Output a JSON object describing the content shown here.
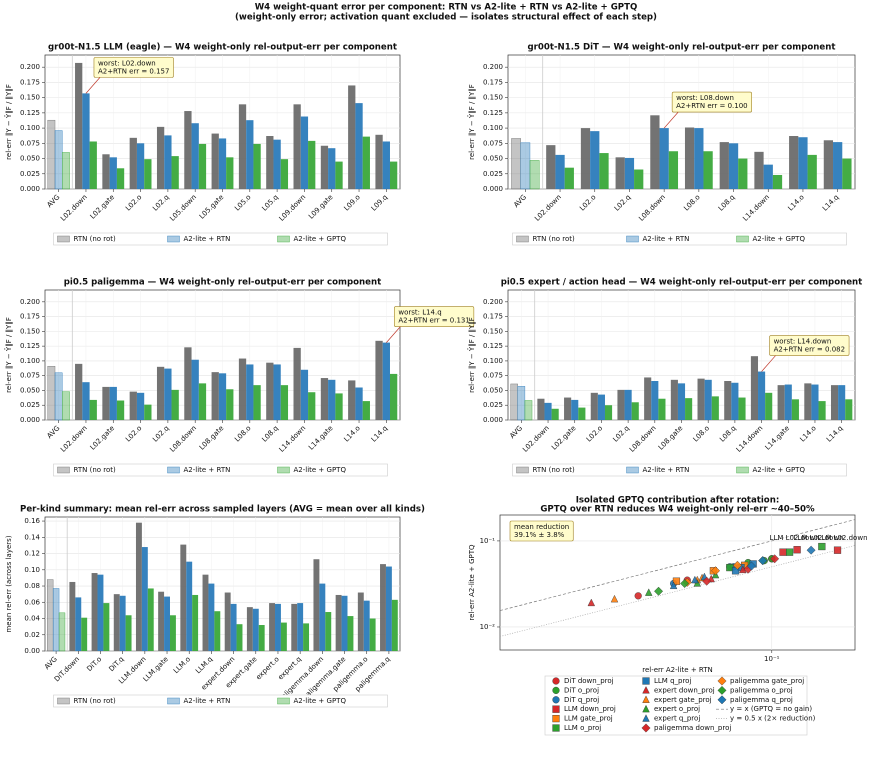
{
  "title": [
    "W4 weight-quant error per component: RTN  vs  A2-lite + RTN  vs  A2-lite + GPTQ",
    "(weight-only error; activation quant excluded — isolates structural effect of each step)"
  ],
  "chart_data": [
    {
      "type": "bar",
      "title": "gr00t-N1.5  LLM (eagle)  —  W4 weight-only rel-output-err per component",
      "ylabel": "rel-err ‖Y − Ŷ‖F / ‖Y‖F",
      "categories": [
        "AVG",
        "L02.down",
        "L02.gate",
        "L02.o",
        "L02.q",
        "L05.down",
        "L05.gate",
        "L05.o",
        "L05.q",
        "L09.down",
        "L09.gate",
        "L09.o",
        "L09.q"
      ],
      "series": [
        {
          "name": "RTN (no rot)",
          "color": "#6b6b6b",
          "values": [
            0.113,
            0.207,
            0.057,
            0.084,
            0.102,
            0.128,
            0.091,
            0.139,
            0.087,
            0.139,
            0.071,
            0.17,
            0.089
          ]
        },
        {
          "name": "A2-lite + RTN",
          "color": "#2b7bba",
          "values": [
            0.096,
            0.157,
            0.052,
            0.075,
            0.088,
            0.108,
            0.083,
            0.113,
            0.081,
            0.119,
            0.067,
            0.141,
            0.078
          ]
        },
        {
          "name": "A2-lite + GPTQ",
          "color": "#3aa83a",
          "values": [
            0.06,
            0.078,
            0.034,
            0.049,
            0.054,
            0.074,
            0.052,
            0.074,
            0.049,
            0.079,
            0.045,
            0.086,
            0.045
          ]
        }
      ],
      "ylim": [
        0,
        0.22
      ],
      "yticks": [
        {
          "value": 0,
          "label": "0.000"
        },
        {
          "value": 0.025,
          "label": "0.025"
        },
        {
          "value": 0.05,
          "label": "0.050"
        },
        {
          "value": 0.075,
          "label": "0.075"
        },
        {
          "value": 0.1,
          "label": "0.100"
        },
        {
          "value": 0.125,
          "label": "0.125"
        },
        {
          "value": 0.15,
          "label": "0.150"
        },
        {
          "value": 0.175,
          "label": "0.175"
        },
        {
          "value": 0.2,
          "label": "0.200"
        }
      ],
      "grid": true,
      "annotation": [
        "worst: L02.down",
        "A2+RTN err = 0.157"
      ]
    },
    {
      "type": "bar",
      "title": "gr00t-N1.5  DiT  —  W4 weight-only rel-output-err per component",
      "ylabel": "rel-err ‖Y − Ŷ‖F / ‖Y‖F",
      "categories": [
        "AVG",
        "L02.down",
        "L02.o",
        "L02.q",
        "L08.down",
        "L08.o",
        "L08.q",
        "L14.down",
        "L14.o",
        "L14.q"
      ],
      "series": [
        {
          "name": "RTN (no rot)",
          "color": "#6b6b6b",
          "values": [
            0.083,
            0.072,
            0.1,
            0.052,
            0.121,
            0.101,
            0.077,
            0.061,
            0.087,
            0.08
          ]
        },
        {
          "name": "A2-lite + RTN",
          "color": "#2b7bba",
          "values": [
            0.076,
            0.056,
            0.095,
            0.051,
            0.1,
            0.1,
            0.075,
            0.04,
            0.085,
            0.077
          ]
        },
        {
          "name": "A2-lite + GPTQ",
          "color": "#3aa83a",
          "values": [
            0.047,
            0.035,
            0.059,
            0.032,
            0.062,
            0.062,
            0.05,
            0.023,
            0.056,
            0.05
          ]
        }
      ],
      "ylim": [
        0,
        0.22
      ],
      "yticks": [
        {
          "value": 0,
          "label": "0.000"
        },
        {
          "value": 0.025,
          "label": "0.025"
        },
        {
          "value": 0.05,
          "label": "0.050"
        },
        {
          "value": 0.075,
          "label": "0.075"
        },
        {
          "value": 0.1,
          "label": "0.100"
        },
        {
          "value": 0.125,
          "label": "0.125"
        },
        {
          "value": 0.15,
          "label": "0.150"
        },
        {
          "value": 0.175,
          "label": "0.175"
        },
        {
          "value": 0.2,
          "label": "0.200"
        }
      ],
      "grid": true,
      "annotation": [
        "worst: L08.down",
        "A2+RTN err = 0.100"
      ]
    },
    {
      "type": "bar",
      "title": "pi0.5  paligemma  —  W4 weight-only rel-output-err per component",
      "ylabel": "rel-err ‖Y − Ŷ‖F / ‖Y‖F",
      "categories": [
        "AVG",
        "L02.down",
        "L02.gate",
        "L02.o",
        "L02.q",
        "L08.down",
        "L08.gate",
        "L08.o",
        "L08.q",
        "L14.down",
        "L14.gate",
        "L14.o",
        "L14.q"
      ],
      "series": [
        {
          "name": "RTN (no rot)",
          "color": "#6b6b6b",
          "values": [
            0.091,
            0.095,
            0.056,
            0.048,
            0.09,
            0.123,
            0.081,
            0.104,
            0.097,
            0.122,
            0.071,
            0.067,
            0.134
          ]
        },
        {
          "name": "A2-lite + RTN",
          "color": "#2b7bba",
          "values": [
            0.08,
            0.064,
            0.056,
            0.046,
            0.087,
            0.102,
            0.079,
            0.094,
            0.094,
            0.085,
            0.068,
            0.055,
            0.131
          ]
        },
        {
          "name": "A2-lite + GPTQ",
          "color": "#3aa83a",
          "values": [
            0.048,
            0.034,
            0.033,
            0.026,
            0.051,
            0.062,
            0.052,
            0.059,
            0.059,
            0.047,
            0.045,
            0.032,
            0.078
          ]
        }
      ],
      "ylim": [
        0,
        0.22
      ],
      "yticks": [
        {
          "value": 0,
          "label": "0.000"
        },
        {
          "value": 0.025,
          "label": "0.025"
        },
        {
          "value": 0.05,
          "label": "0.050"
        },
        {
          "value": 0.075,
          "label": "0.075"
        },
        {
          "value": 0.1,
          "label": "0.100"
        },
        {
          "value": 0.125,
          "label": "0.125"
        },
        {
          "value": 0.15,
          "label": "0.150"
        },
        {
          "value": 0.175,
          "label": "0.175"
        },
        {
          "value": 0.2,
          "label": "0.200"
        }
      ],
      "grid": true,
      "annotation": [
        "worst: L14.q",
        "A2+RTN err = 0.131"
      ]
    },
    {
      "type": "bar",
      "title": "pi0.5  expert / action head  —  W4 weight-only rel-output-err per component",
      "ylabel": "rel-err ‖Y − Ŷ‖F / ‖Y‖F",
      "categories": [
        "AVG",
        "L02.down",
        "L02.gate",
        "L02.o",
        "L02.q",
        "L08.down",
        "L08.gate",
        "L08.o",
        "L08.q",
        "L14.down",
        "L14.gate",
        "L14.o",
        "L14.q"
      ],
      "series": [
        {
          "name": "RTN (no rot)",
          "color": "#6b6b6b",
          "values": [
            0.061,
            0.036,
            0.038,
            0.046,
            0.051,
            0.072,
            0.068,
            0.07,
            0.066,
            0.108,
            0.059,
            0.062,
            0.059
          ]
        },
        {
          "name": "A2-lite + RTN",
          "color": "#2b7bba",
          "values": [
            0.057,
            0.029,
            0.034,
            0.043,
            0.051,
            0.066,
            0.062,
            0.068,
            0.063,
            0.082,
            0.06,
            0.06,
            0.059
          ]
        },
        {
          "name": "A2-lite + GPTQ",
          "color": "#3aa83a",
          "values": [
            0.033,
            0.019,
            0.021,
            0.025,
            0.03,
            0.036,
            0.037,
            0.04,
            0.038,
            0.046,
            0.035,
            0.032,
            0.035
          ]
        }
      ],
      "ylim": [
        0,
        0.22
      ],
      "yticks": [
        {
          "value": 0,
          "label": "0.000"
        },
        {
          "value": 0.025,
          "label": "0.025"
        },
        {
          "value": 0.05,
          "label": "0.050"
        },
        {
          "value": 0.075,
          "label": "0.075"
        },
        {
          "value": 0.1,
          "label": "0.100"
        },
        {
          "value": 0.125,
          "label": "0.125"
        },
        {
          "value": 0.15,
          "label": "0.150"
        },
        {
          "value": 0.175,
          "label": "0.175"
        },
        {
          "value": 0.2,
          "label": "0.200"
        }
      ],
      "grid": true,
      "annotation": [
        "worst: L14.down",
        "A2+RTN err = 0.082"
      ]
    },
    {
      "type": "bar",
      "title": "Per-kind summary: mean rel-err across sampled layers (AVG = mean over all kinds)",
      "ylabel": "mean rel-err (across layers)",
      "categories": [
        "AVG",
        "DiT.down",
        "DiT.o",
        "DiT.q",
        "LLM.down",
        "LLM.gate",
        "LLM.o",
        "LLM.q",
        "expert.down",
        "expert.gate",
        "expert.o",
        "expert.q",
        "paligemma.down",
        "paligemma.gate",
        "paligemma.o",
        "paligemma.q"
      ],
      "series": [
        {
          "name": "RTN (no rot)",
          "color": "#6b6b6b",
          "values": [
            0.088,
            0.085,
            0.096,
            0.07,
            0.158,
            0.073,
            0.131,
            0.094,
            0.072,
            0.054,
            0.059,
            0.058,
            0.113,
            0.069,
            0.072,
            0.107
          ]
        },
        {
          "name": "A2-lite + RTN",
          "color": "#2b7bba",
          "values": [
            0.077,
            0.066,
            0.094,
            0.068,
            0.128,
            0.067,
            0.11,
            0.083,
            0.058,
            0.052,
            0.058,
            0.059,
            0.083,
            0.068,
            0.062,
            0.104
          ]
        },
        {
          "name": "A2-lite + GPTQ",
          "color": "#3aa83a",
          "values": [
            0.047,
            0.041,
            0.059,
            0.044,
            0.077,
            0.044,
            0.069,
            0.049,
            0.033,
            0.032,
            0.035,
            0.034,
            0.048,
            0.043,
            0.04,
            0.063
          ]
        }
      ],
      "ylim": [
        0,
        0.165
      ],
      "yticks": [
        {
          "value": 0,
          "label": "0.00"
        },
        {
          "value": 0.02,
          "label": "0.02"
        },
        {
          "value": 0.04,
          "label": "0.04"
        },
        {
          "value": 0.06,
          "label": "0.06"
        },
        {
          "value": 0.08,
          "label": "0.08"
        },
        {
          "value": 0.1,
          "label": "0.10"
        },
        {
          "value": 0.12,
          "label": "0.12"
        },
        {
          "value": 0.14,
          "label": "0.14"
        },
        {
          "value": 0.16,
          "label": "0.16"
        }
      ],
      "grid": true
    },
    {
      "type": "scatter",
      "title": [
        "Isolated GPTQ contribution after rotation:",
        "GPTQ over RTN reduces W4 weight-only rel-err ~40–50%"
      ],
      "xlabel": "rel-err  A2-lite + RTN",
      "ylabel": "rel-err  A2-lite + GPTQ",
      "xscale": "log",
      "yscale": "log",
      "xlim": [
        0.0155,
        0.177
      ],
      "ylim": [
        0.0054,
        0.2
      ],
      "xticks": [
        {
          "value": 0.1,
          "label": "10⁻¹"
        }
      ],
      "yticks": [
        {
          "value": 0.01,
          "label": "10⁻²"
        },
        {
          "value": 0.1,
          "label": "10⁻¹"
        }
      ],
      "grid": true,
      "annotation": [
        "mean reduction",
        "39.1% ± 3.8%"
      ],
      "point_labels": [
        "LLM L02.down",
        "LLM L02.down",
        "LLM L02.down"
      ],
      "series": [
        {
          "name": "DiT down_proj",
          "color": "#d62728",
          "marker": "circle",
          "x": [
            0.056,
            0.1,
            0.04
          ],
          "y": [
            0.035,
            0.062,
            0.023
          ]
        },
        {
          "name": "DiT o_proj",
          "color": "#2ca02c",
          "marker": "circle",
          "x": [
            0.095,
            0.1,
            0.085
          ],
          "y": [
            0.059,
            0.062,
            0.056
          ]
        },
        {
          "name": "DiT q_proj",
          "color": "#1f77b4",
          "marker": "circle",
          "x": [
            0.051,
            0.075,
            0.077
          ],
          "y": [
            0.032,
            0.05,
            0.05
          ]
        },
        {
          "name": "LLM down_proj",
          "color": "#d62728",
          "marker": "square",
          "x": [
            0.157,
            0.108,
            0.119
          ],
          "y": [
            0.078,
            0.074,
            0.079
          ]
        },
        {
          "name": "LLM gate_proj",
          "color": "#ff7f0e",
          "marker": "square",
          "x": [
            0.052,
            0.083,
            0.067
          ],
          "y": [
            0.034,
            0.052,
            0.045
          ]
        },
        {
          "name": "LLM o_proj",
          "color": "#2ca02c",
          "marker": "square",
          "x": [
            0.075,
            0.113,
            0.141
          ],
          "y": [
            0.049,
            0.074,
            0.086
          ]
        },
        {
          "name": "LLM q_proj",
          "color": "#1f77b4",
          "marker": "square",
          "x": [
            0.088,
            0.081,
            0.078
          ],
          "y": [
            0.054,
            0.049,
            0.045
          ]
        },
        {
          "name": "expert down_proj",
          "color": "#d62728",
          "marker": "triangle",
          "x": [
            0.029,
            0.066,
            0.082
          ],
          "y": [
            0.019,
            0.036,
            0.046
          ]
        },
        {
          "name": "expert gate_proj",
          "color": "#ff7f0e",
          "marker": "triangle",
          "x": [
            0.034,
            0.062,
            0.06
          ],
          "y": [
            0.021,
            0.037,
            0.035
          ]
        },
        {
          "name": "expert o_proj",
          "color": "#2ca02c",
          "marker": "triangle",
          "x": [
            0.043,
            0.068,
            0.06
          ],
          "y": [
            0.025,
            0.04,
            0.032
          ]
        },
        {
          "name": "expert q_proj",
          "color": "#1f77b4",
          "marker": "triangle",
          "x": [
            0.051,
            0.063,
            0.059
          ],
          "y": [
            0.03,
            0.038,
            0.035
          ]
        },
        {
          "name": "paligemma down_proj",
          "color": "#d62728",
          "marker": "diamond",
          "x": [
            0.064,
            0.102,
            0.085
          ],
          "y": [
            0.034,
            0.062,
            0.047
          ]
        },
        {
          "name": "paligemma gate_proj",
          "color": "#ff7f0e",
          "marker": "diamond",
          "x": [
            0.056,
            0.079,
            0.068
          ],
          "y": [
            0.033,
            0.052,
            0.045
          ]
        },
        {
          "name": "paligemma o_proj",
          "color": "#2ca02c",
          "marker": "diamond",
          "x": [
            0.046,
            0.094,
            0.055
          ],
          "y": [
            0.026,
            0.059,
            0.032
          ]
        },
        {
          "name": "paligemma q_proj",
          "color": "#1f77b4",
          "marker": "diamond",
          "x": [
            0.087,
            0.094,
            0.131
          ],
          "y": [
            0.051,
            0.059,
            0.078
          ]
        }
      ],
      "reference_lines": [
        {
          "name": "y = x  (GPTQ = no gain)",
          "slope": 1,
          "style": "dashed"
        },
        {
          "name": "y = 0.5 x  (2× reduction)",
          "slope": 0.5,
          "style": "dotted"
        }
      ]
    }
  ]
}
